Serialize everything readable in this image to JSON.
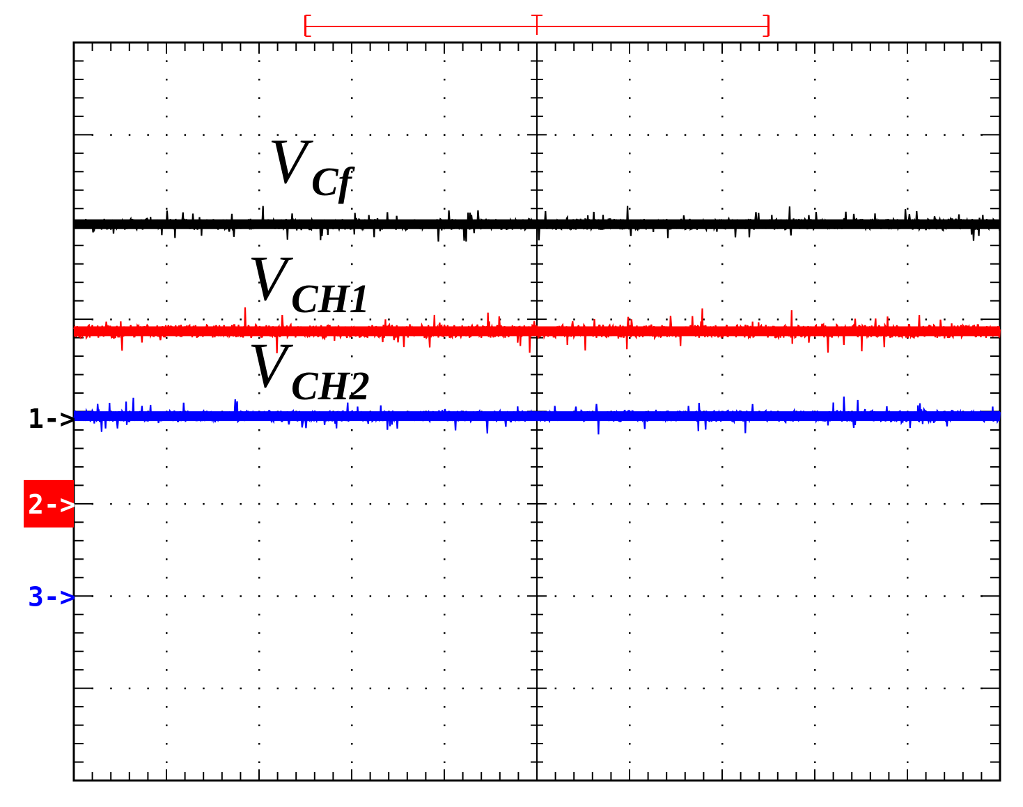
{
  "chart_data": {
    "type": "line",
    "grid": true,
    "xlim": [
      0,
      10
    ],
    "ylim": [
      0,
      8
    ],
    "series": [
      {
        "name": "V_Cf",
        "label_main": "V",
        "label_sub": "Cf",
        "color": "#000000",
        "level": 6.03,
        "noise_amplitude": 0.1
      },
      {
        "name": "V_CH1",
        "label_main": "V",
        "label_sub": "CH1",
        "color": "#ff0000",
        "level": 4.87,
        "noise_amplitude": 0.12
      },
      {
        "name": "V_CH2",
        "label_main": "V",
        "label_sub": "CH2",
        "color": "#0000ff",
        "level": 3.95,
        "noise_amplitude": 0.1
      }
    ],
    "ground_markers": [
      {
        "text": "1->",
        "level": 3.93,
        "color": "#000000",
        "highlight": false
      },
      {
        "text": "2->",
        "level": 3.0,
        "color": "#ffffff",
        "bg": "#ff0000",
        "highlight": true
      },
      {
        "text": "3->",
        "level": 2.0,
        "color": "#0000ff",
        "highlight": false
      }
    ],
    "time_bracket": {
      "color": "#ff0000",
      "start": 2.5,
      "center": 5.0,
      "end": 7.5
    }
  }
}
